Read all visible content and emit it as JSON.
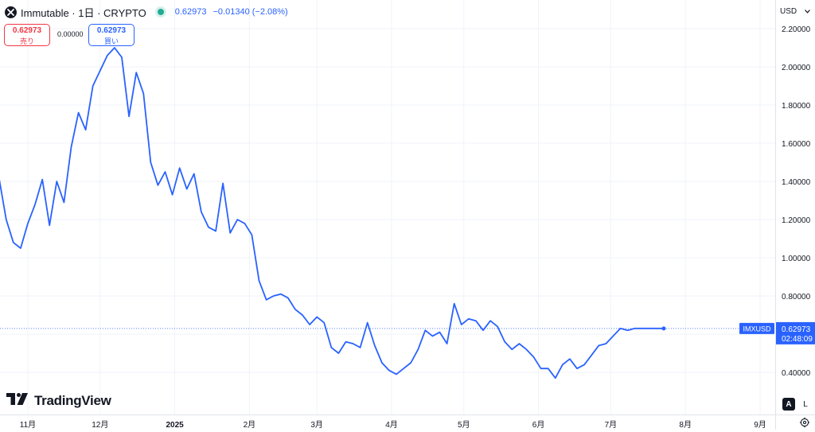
{
  "header": {
    "symbol_title": "Immutable · 1日 · CRYPTO",
    "price": "0.62973",
    "change": "−0.01340 (−2.08%)"
  },
  "trade": {
    "sell_price": "0.62973",
    "sell_label": "売り",
    "spread": "0.00000",
    "buy_price": "0.62973",
    "buy_label": "買い"
  },
  "currency": "USD",
  "branding": {
    "logo_text": "TradingView"
  },
  "buttons": {
    "auto": "A",
    "log": "L"
  },
  "colors": {
    "line": "#2962ff",
    "axis_text": "#131722",
    "grid": "#f0f3fa"
  },
  "chart_data": {
    "type": "line",
    "x": [
      "2024-10-11",
      "2024-10-14",
      "2024-10-17",
      "2024-10-20",
      "2024-10-23",
      "2024-10-26",
      "2024-10-29",
      "2024-11-01",
      "2024-11-04",
      "2024-11-07",
      "2024-11-10",
      "2024-11-13",
      "2024-11-16",
      "2024-11-19",
      "2024-11-22",
      "2024-11-25",
      "2024-11-28",
      "2024-12-01",
      "2024-12-04",
      "2024-12-07",
      "2024-12-10",
      "2024-12-13",
      "2024-12-16",
      "2024-12-19",
      "2024-12-22",
      "2024-12-25",
      "2024-12-28",
      "2024-12-31",
      "2025-01-03",
      "2025-01-06",
      "2025-01-09",
      "2025-01-12",
      "2025-01-15",
      "2025-01-18",
      "2025-01-21",
      "2025-01-24",
      "2025-01-27",
      "2025-01-30",
      "2025-02-02",
      "2025-02-05",
      "2025-02-08",
      "2025-02-11",
      "2025-02-14",
      "2025-02-17",
      "2025-02-20",
      "2025-02-23",
      "2025-02-26",
      "2025-03-01",
      "2025-03-04",
      "2025-03-07",
      "2025-03-10",
      "2025-03-13",
      "2025-03-16",
      "2025-03-19",
      "2025-03-22",
      "2025-03-25",
      "2025-03-28",
      "2025-03-31",
      "2025-04-03",
      "2025-04-06",
      "2025-04-09",
      "2025-04-12",
      "2025-04-15",
      "2025-04-18",
      "2025-04-21",
      "2025-04-24",
      "2025-04-27",
      "2025-04-30",
      "2025-05-03",
      "2025-05-06",
      "2025-05-09",
      "2025-05-12",
      "2025-05-15",
      "2025-05-18",
      "2025-05-21",
      "2025-05-24",
      "2025-05-27",
      "2025-05-30",
      "2025-06-02",
      "2025-06-05",
      "2025-06-08",
      "2025-06-11",
      "2025-06-14",
      "2025-06-17",
      "2025-06-20",
      "2025-06-23",
      "2025-06-26",
      "2025-06-29",
      "2025-07-02",
      "2025-07-05",
      "2025-07-08",
      "2025-07-11",
      "2025-07-14",
      "2025-07-17",
      "2025-07-20",
      "2025-07-23"
    ],
    "values": [
      1.52,
      1.4,
      1.33,
      1.42,
      1.2,
      1.08,
      1.05,
      1.18,
      1.28,
      1.41,
      1.17,
      1.4,
      1.29,
      1.58,
      1.76,
      1.67,
      1.9,
      1.98,
      2.06,
      2.1,
      2.05,
      1.74,
      1.97,
      1.86,
      1.5,
      1.38,
      1.45,
      1.33,
      1.47,
      1.36,
      1.44,
      1.24,
      1.16,
      1.14,
      1.39,
      1.13,
      1.2,
      1.18,
      1.12,
      0.88,
      0.78,
      0.8,
      0.81,
      0.79,
      0.73,
      0.7,
      0.65,
      0.69,
      0.66,
      0.53,
      0.5,
      0.56,
      0.55,
      0.53,
      0.66,
      0.54,
      0.45,
      0.41,
      0.39,
      0.42,
      0.45,
      0.52,
      0.62,
      0.59,
      0.61,
      0.55,
      0.76,
      0.65,
      0.68,
      0.67,
      0.62,
      0.67,
      0.64,
      0.56,
      0.52,
      0.55,
      0.52,
      0.48,
      0.42,
      0.42,
      0.37,
      0.44,
      0.47,
      0.42,
      0.44,
      0.49,
      0.54,
      0.55,
      0.59,
      0.63,
      0.62,
      0.63,
      0.63,
      0.63,
      0.63,
      0.63
    ],
    "last_value": 0.62973,
    "last_label": "IMXUSD",
    "countdown": "02:48:09",
    "ylim": [
      0.265,
      2.2
    ],
    "yticks": [
      "2.20000",
      "2.00000",
      "1.80000",
      "1.60000",
      "1.40000",
      "1.20000",
      "1.00000",
      "0.80000",
      "0.40000"
    ],
    "ytick_values": [
      2.2,
      2.0,
      1.8,
      1.6,
      1.4,
      1.2,
      1.0,
      0.8,
      0.4
    ],
    "xtick_labels": [
      "11月",
      "12月",
      "2025",
      "2月",
      "3月",
      "4月",
      "5月",
      "6月",
      "7月",
      "8月",
      "9月"
    ],
    "xtick_dates": [
      "2024-11-01",
      "2024-12-01",
      "2025-01-01",
      "2025-02-01",
      "2025-03-01",
      "2025-04-01",
      "2025-05-01",
      "2025-06-01",
      "2025-07-01",
      "2025-08-01",
      "2025-09-01"
    ],
    "xlim": [
      "2024-10-11",
      "2025-09-08"
    ],
    "grid": true
  }
}
